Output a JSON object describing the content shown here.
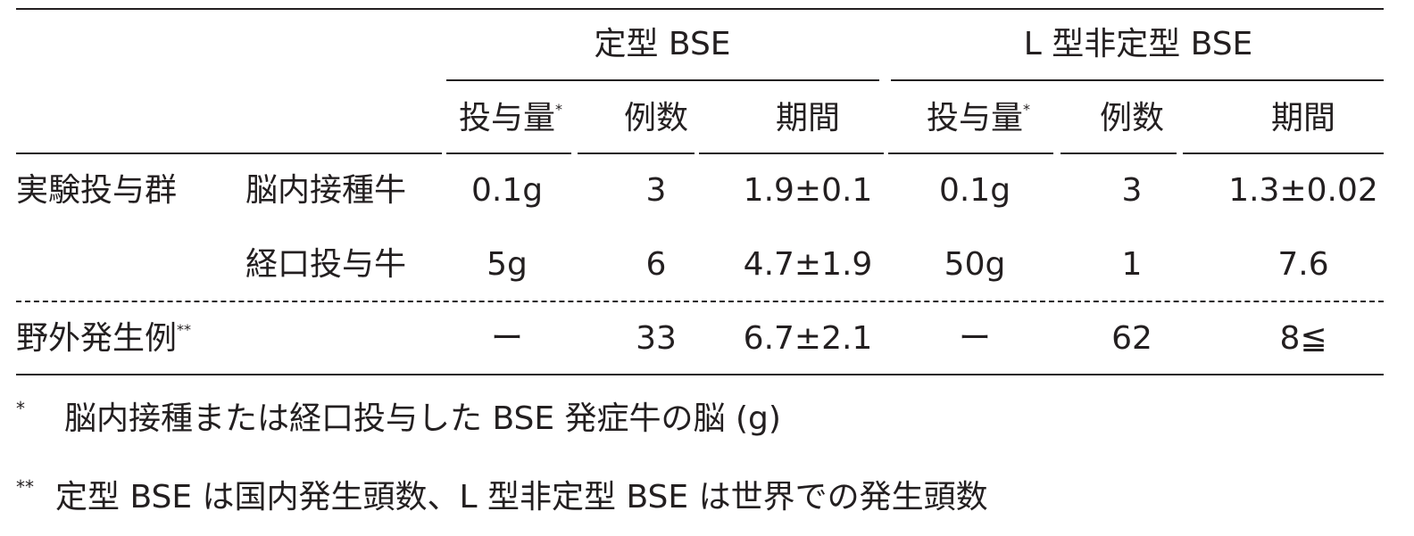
{
  "table": {
    "group_headers": [
      "定型 BSE",
      "L 型非定型 BSE"
    ],
    "sub_headers": [
      {
        "text": "投与量",
        "mark": "*"
      },
      {
        "text": "例数"
      },
      {
        "text": "期間"
      },
      {
        "text": "投与量",
        "mark": "*"
      },
      {
        "text": "例数"
      },
      {
        "text": "期間"
      }
    ],
    "rows": [
      {
        "group": "実験投与群",
        "label": "脳内接種牛",
        "cells": [
          "0.1g",
          "3",
          "1.9±0.1",
          "0.1g",
          "3",
          "1.3±0.02"
        ]
      },
      {
        "label": "経口投与牛",
        "cells": [
          "5g",
          "6",
          "4.7±1.9",
          "50g",
          "1",
          "7.6"
        ]
      },
      {
        "group": "野外発生例",
        "mark": "**",
        "cells": [
          "ー",
          "33",
          "6.7±2.1",
          "ー",
          "62",
          "8≦"
        ]
      }
    ]
  },
  "footnotes": [
    {
      "mark": "*",
      "text": "脳内接種または経口投与した BSE 発症牛の脳 (g)"
    },
    {
      "mark": "**",
      "text": "定型 BSE は国内発生頭数、L 型非定型 BSE は世界での発生頭数"
    }
  ]
}
